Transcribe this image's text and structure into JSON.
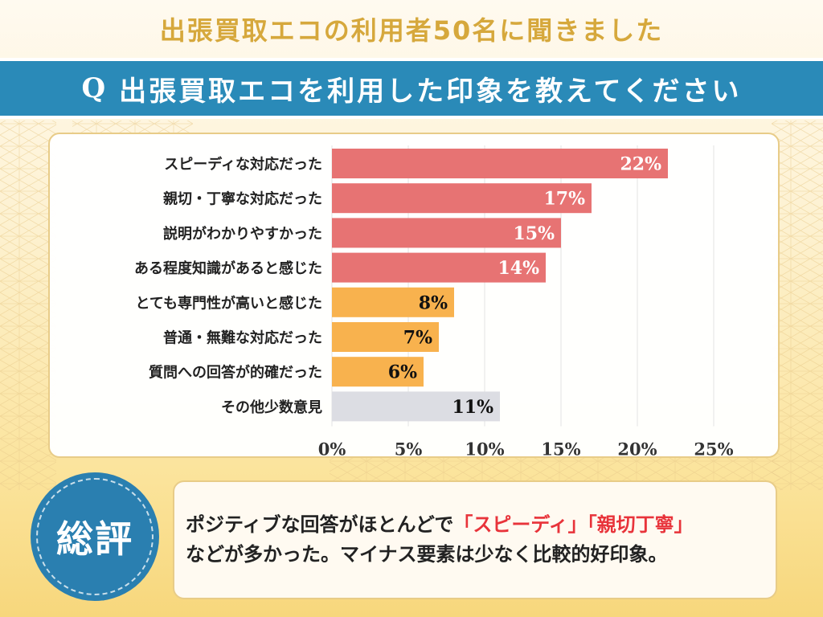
{
  "header": {
    "title": "出張買取エコの利用者50名に聞きました",
    "question_mark": "Q",
    "question": "出張買取エコを利用した印象を教えてください"
  },
  "colors": {
    "title_gold": "#d6a83c",
    "banner_blue": "#2a8ab8",
    "bar_red": "#e77373",
    "bar_orange": "#f8b24e",
    "bar_gray": "#dcdde3",
    "highlight_red": "#e8333a"
  },
  "chart_data": {
    "type": "bar",
    "orientation": "horizontal",
    "title": "",
    "xlabel": "",
    "ylabel": "",
    "categories": [
      "スピーディな対応だった",
      "親切・丁寧な対応だった",
      "説明がわかりやすかった",
      "ある程度知識があると感じた",
      "とても専門性が高いと感じた",
      "普通・無難な対応だった",
      "質問への回答が的確だった",
      "その他少数意見"
    ],
    "values": [
      22,
      17,
      15,
      14,
      8,
      7,
      6,
      11
    ],
    "value_labels": [
      "22%",
      "17%",
      "15%",
      "14%",
      "8%",
      "7%",
      "6%",
      "11%"
    ],
    "groups": [
      "positive",
      "positive",
      "positive",
      "positive",
      "neutral",
      "neutral",
      "neutral",
      "other"
    ],
    "xlim": [
      0,
      25
    ],
    "xticks": [
      0,
      5,
      10,
      15,
      20,
      25
    ],
    "xtick_labels": [
      "0%",
      "5%",
      "10%",
      "15%",
      "20%",
      "25%"
    ],
    "grid": true,
    "legend": "none"
  },
  "summary": {
    "badge_label": "総評",
    "line1_prefix": "ポジティブな回答がほとんどで",
    "highlight1": "「スピーディ」",
    "highlight2": "「親切丁寧」",
    "line2": "などが多かった。マイナス要素は少なく比較的好印象。"
  }
}
